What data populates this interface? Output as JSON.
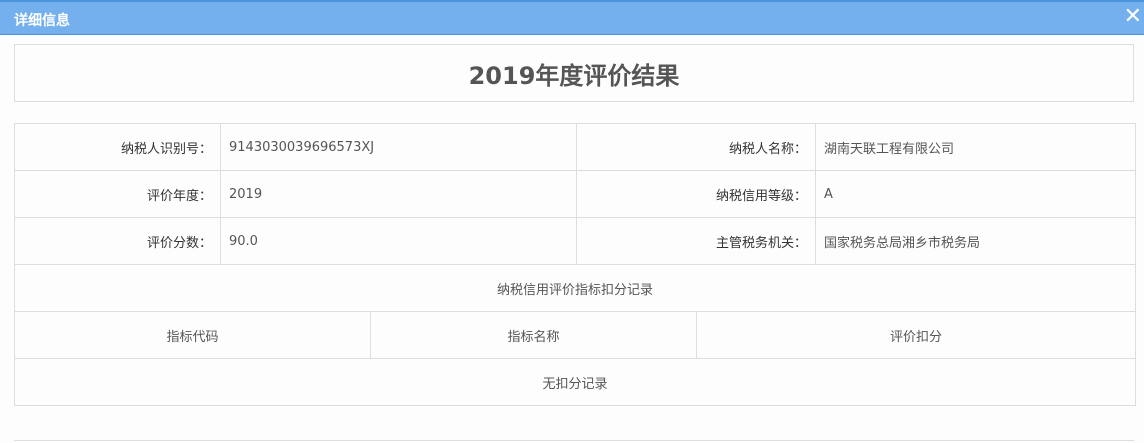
{
  "dialog": {
    "title": "详细信息",
    "close_icon": "close-icon"
  },
  "report_title": "2019年度评价结果",
  "info": [
    {
      "label": "纳税人识别号：",
      "value": "9143030039696573XJ",
      "label2": "纳税人名称：",
      "value2": "湖南天联工程有限公司"
    },
    {
      "label": "评价年度：",
      "value": "2019",
      "label2": "纳税信用等级：",
      "value2": "A"
    },
    {
      "label": "评价分数：",
      "value": "90.0",
      "label2": "主管税务机关：",
      "value2": "国家税务总局湘乡市税务局"
    }
  ],
  "deduction": {
    "section_title": "纳税信用评价指标扣分记录",
    "columns": [
      "指标代码",
      "指标名称",
      "评价扣分"
    ],
    "empty_text": "无扣分记录"
  }
}
